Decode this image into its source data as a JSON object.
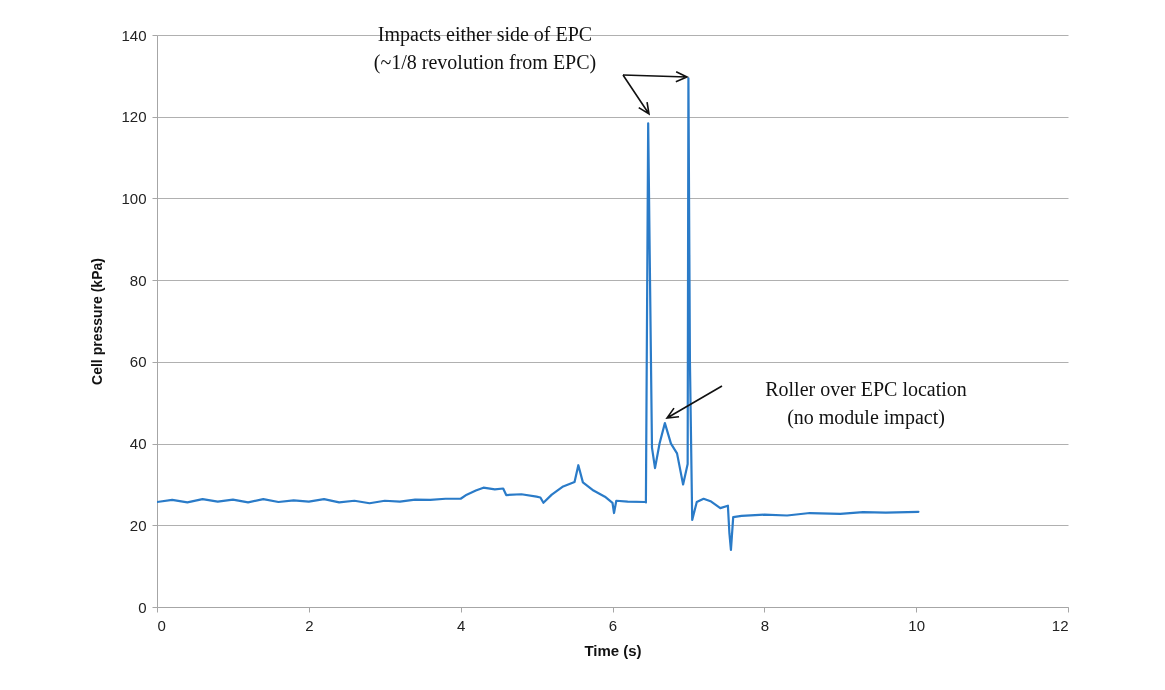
{
  "chart_data": {
    "type": "line",
    "xlabel": "Time (s)",
    "ylabel": "Cell pressure (kPa)",
    "annotations": [
      "Impacts either side of EPC\n(~1/8 revolution from EPC)",
      "Roller over EPC location\n(no module impact)"
    ],
    "series": [
      {
        "color": "#2a7bc8",
        "x": [
          0,
          0.2,
          0.4,
          0.6,
          0.8,
          1.0,
          1.2,
          1.4,
          1.6,
          1.8,
          2.0,
          2.2,
          2.4,
          2.6,
          2.8,
          3.0,
          3.2,
          3.4,
          3.6,
          3.8,
          4.0,
          4.08,
          4.2,
          4.3,
          4.45,
          4.56,
          4.6,
          4.8,
          5.0,
          5.05,
          5.09,
          5.2,
          5.35,
          5.5,
          5.55,
          5.61,
          5.75,
          5.9,
          6.0,
          6.02,
          6.05,
          6.2,
          6.43,
          6.44,
          6.47,
          6.52,
          6.56,
          6.62,
          6.69,
          6.77,
          6.85,
          6.93,
          6.99,
          7.0,
          7.02,
          7.05,
          7.11,
          7.2,
          7.3,
          7.42,
          7.52,
          7.54,
          7.56,
          7.59,
          7.7,
          8.0,
          8.3,
          8.6,
          9.0,
          9.3,
          9.6,
          10.03
        ],
        "values": [
          25.7,
          26.2,
          25.6,
          26.4,
          25.8,
          26.3,
          25.6,
          26.4,
          25.7,
          26.1,
          25.8,
          26.4,
          25.6,
          26.0,
          25.4,
          26.0,
          25.8,
          26.3,
          26.2,
          26.5,
          26.5,
          27.5,
          28.5,
          29.2,
          28.8,
          29.0,
          27.4,
          27.6,
          27.0,
          26.8,
          25.5,
          27.5,
          29.5,
          30.6,
          34.7,
          30.5,
          28.5,
          27.0,
          25.5,
          23.0,
          26.0,
          25.8,
          25.7,
          25.6,
          118.4,
          39,
          34,
          40,
          45,
          40,
          37.6,
          30,
          35,
          129.4,
          60,
          21.3,
          25.7,
          26.5,
          25.8,
          24.2,
          24.8,
          18,
          14,
          22,
          22.3,
          22.6,
          22.4,
          23.0,
          22.8,
          23.2,
          23.1,
          23.3
        ]
      }
    ],
    "xlim": [
      0,
      12
    ],
    "xticks": [
      0,
      2,
      4,
      6,
      8,
      10,
      12
    ],
    "ylim": [
      0,
      140
    ],
    "yticks": [
      0,
      20,
      40,
      60,
      80,
      100,
      120,
      140
    ],
    "grid": "y",
    "marker": "none",
    "line_style": "solid"
  }
}
